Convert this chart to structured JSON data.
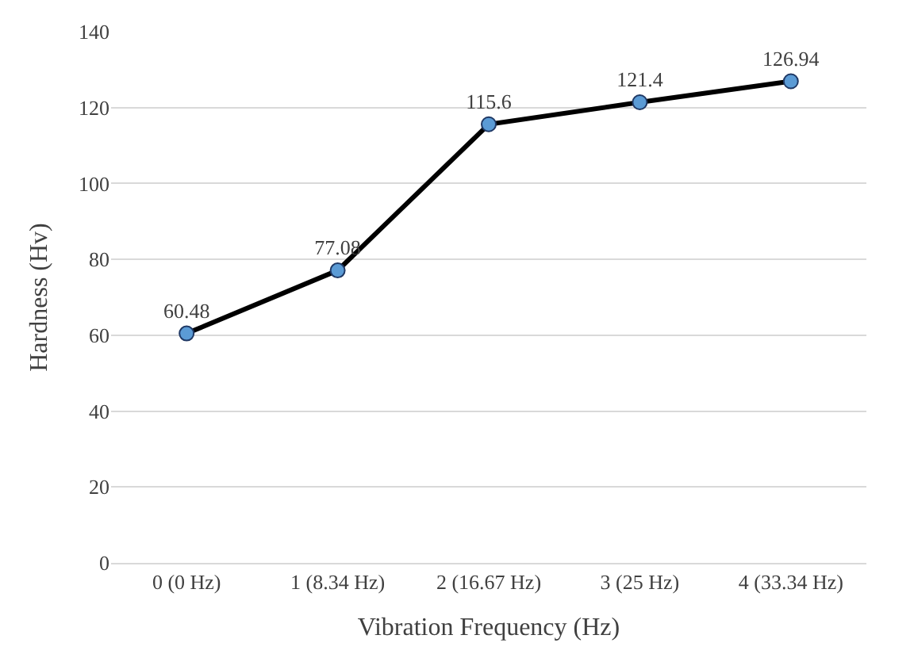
{
  "chart_data": {
    "type": "line",
    "xlabel": "Vibration Frequency (Hz)",
    "ylabel": "Hardness (Hv)",
    "categories": [
      "0 (0 Hz)",
      "1 (8.34 Hz)",
      "2 (16.67 Hz)",
      "3 (25 Hz)",
      "4 (33.34 Hz)"
    ],
    "series": [
      {
        "color": "#000000",
        "colors": [
          "#5b9bd5",
          "#5b9bd5",
          "#5b9bd5",
          "#5b9bd5",
          "#5b9bd5"
        ],
        "values": [
          60.48,
          77.08,
          115.6,
          121.4,
          126.94
        ]
      }
    ],
    "ylim": [
      0,
      140
    ],
    "yticks": [
      0,
      20,
      40,
      60,
      80,
      100,
      120,
      140
    ],
    "grid": "y",
    "marker": "circle",
    "line_style": "solid",
    "data_labels": true,
    "legend": false
  }
}
